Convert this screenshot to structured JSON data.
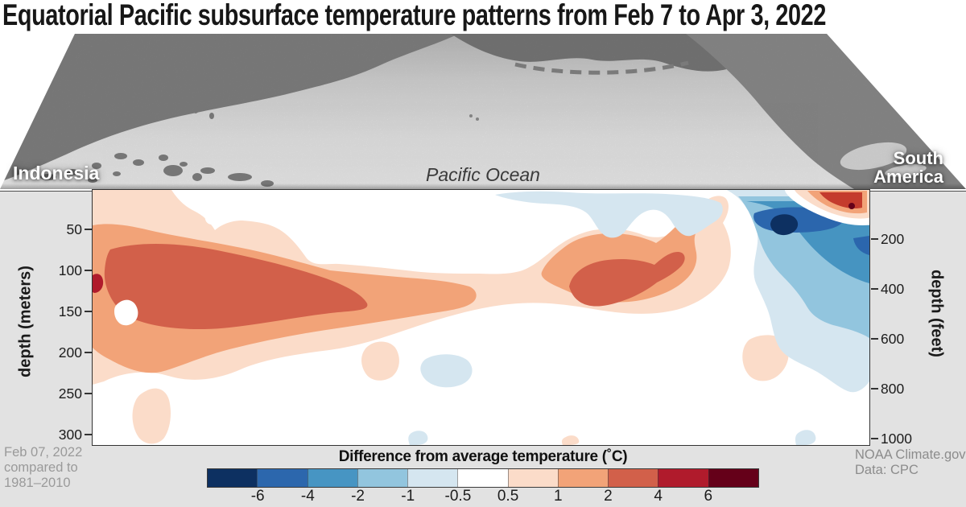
{
  "title": "Equatorial Pacific subsurface temperature patterns from Feb 7 to Apr 3, 2022",
  "map": {
    "label_left": "Indonesia",
    "label_center": "Pacific Ocean",
    "label_right_line1": "South",
    "label_right_line2": "America"
  },
  "axes": {
    "left": {
      "title": "depth (meters)",
      "ticks": [
        "50",
        "100",
        "150",
        "200",
        "250",
        "300"
      ]
    },
    "right": {
      "title": "depth (feet)",
      "ticks": [
        "200",
        "400",
        "600",
        "800",
        "1000"
      ]
    }
  },
  "footer": {
    "left_lines": [
      "Feb 07, 2022",
      "compared to",
      "1981–2010"
    ],
    "right_lines": [
      "NOAA Climate.gov",
      "Data: CPC"
    ]
  },
  "colorbar": {
    "title": "Difference from average temperature (˚C)",
    "tick_labels": [
      "-6",
      "-4",
      "-2",
      "-1",
      "-0.5",
      "0.5",
      "1",
      "2",
      "4",
      "6"
    ],
    "segment_colors": [
      "#0d3061",
      "#2c67ad",
      "#4795c3",
      "#92c5de",
      "#d5e6f0",
      "#ffffff",
      "#fbdcc9",
      "#f2a378",
      "#d2604a",
      "#b01b2c",
      "#650019"
    ]
  },
  "chart_data": {
    "type": "heatmap",
    "title": "Equatorial Pacific subsurface temperature anomaly cross-section, Feb 07, 2022 vs 1981-2010 average",
    "x_extent": "Indonesia (west) to South America (east) along the equatorial Pacific",
    "y_axis_left": {
      "label": "depth (meters)",
      "ticks": [
        50,
        100,
        150,
        200,
        250,
        300
      ]
    },
    "y_axis_right": {
      "label": "depth (feet)",
      "ticks": [
        200,
        400,
        600,
        800,
        1000
      ]
    },
    "colorbar": {
      "label": "Difference from average temperature (˚C)",
      "boundaries": [
        -6,
        -4,
        -2,
        -1,
        -0.5,
        0.5,
        1,
        2,
        4,
        6
      ]
    },
    "features": [
      {
        "region": "western Pacific subsurface slab, ~50-200 m depth",
        "anomaly_c": "+2 to +4",
        "sign": "warm"
      },
      {
        "region": "central-eastern Pacific blob, ~80-150 m depth",
        "anomaly_c": "+2 to +4",
        "sign": "warm"
      },
      {
        "region": "eastern Pacific upper ocean, 0-~120 m near South America",
        "anomaly_c": "-4 to -6",
        "sign": "cool"
      },
      {
        "region": "thin surface warm pool at far-eastern edge",
        "anomaly_c": "over +6 at core",
        "sign": "warm"
      },
      {
        "region": "scattered weak cool patches near surface mid-basin and at depth",
        "anomaly_c": "-0.5 to -1",
        "sign": "cool"
      }
    ],
    "contour_bands": [
      {
        "range": "0.5 to 1",
        "color": "#fbdcc9",
        "paths": [
          "M 0 0 L 98 0 C 106 12 114 20 126 26 C 138 32 146 40 152 50 C 160 43 172 38 186 38 C 198 39 206 40 214 42 C 236 47 250 62 266 85 C 276 96 290 91 306 92 C 336 94 364 97 398 101 C 424 104 454 104 480 104 C 506 105 522 104 534 100 C 547 95 558 86 570 76 C 584 64 602 54 622 50 C 642 47 664 48 684 56 C 696 60 708 60 720 54 C 734 46 746 32 756 19 C 764 9 778 4 786 10 C 793 17 790 30 783 41 C 792 57 796 77 790 97 C 782 119 762 137 732 147 C 700 157 662 155 622 148 C 587 142 554 138 517 142 C 480 146 444 156 404 169 C 366 182 332 194 294 199 C 254 204 214 210 184 223 C 154 236 124 240 94 231 C 64 222 34 228 14 238 L 0 242 Z",
          "M 66 250 C 78 243 91 247 95 261 C 99 277 97 296 89 308 C 81 318 65 318 57 307 C 49 295 47 277 53 263 C 56 256 60 253 66 250 Z",
          "M 340 196 C 350 186 368 186 376 196 C 384 208 382 224 372 232 C 360 240 344 238 338 226 C 332 215 333 204 340 196 Z",
          "M 816 186 C 832 177 855 179 862 191 C 868 203 864 221 851 231 C 838 241 820 239 813 227 C 805 215 805 195 816 186 Z",
          "M 586 308 C 594 303 602 305 604 311 C 606 316 598 317 590 317 L 584 317 C 582 312 583 310 586 308 Z"
        ]
      },
      {
        "range": "1 to 2",
        "color": "#f2a378",
        "paths": [
          "M 0 44 C 20 40 45 44 70 50 C 105 58 145 64 185 72 C 225 80 258 90 295 100 C 325 103 355 106 390 109 C 420 111 448 114 468 120 C 477 124 479 132 474 138 C 465 148 440 150 410 155 C 370 162 330 168 290 174 C 250 180 210 188 170 198 C 135 207 108 220 85 226 C 62 231 38 220 20 210 C 10 205 4 200 0 196 Z",
          "M 558 102 C 562 92 572 82 585 72 C 600 60 620 54 645 54 C 668 54 688 60 700 66 C 712 58 725 46 735 34 C 742 26 750 20 756 25 C 760 30 756 42 750 52 C 746 60 748 68 750 78 C 752 92 746 104 734 114 C 720 126 700 134 675 138 C 648 142 618 138 595 128 C 578 120 554 112 558 102 Z"
        ]
      },
      {
        "range": "2 to 4",
        "color": "#d2604a",
        "paths": [
          "M 22 74 C 55 64 105 65 155 75 C 205 85 250 96 290 110 C 315 119 335 130 341 141 C 344 149 330 150 305 152 C 265 156 215 166 170 171 C 126 176 74 172 46 158 C 27 148 13 122 15 100 C 16 88 18 80 22 74 Z",
          "M 592 120 C 596 102 614 90 640 87 C 664 84 686 88 698 93 C 707 85 717 77 727 77 C 736 77 739 86 731 95 C 723 103 713 109 701 115 C 686 127 664 138 640 143 C 616 148 598 141 592 120 Z"
        ]
      },
      {
        "range": "4 to 6",
        "color": "#b01b2c",
        "paths": [
          "M 0 106 C 6 102 12 105 13 113 C 14 121 9 128 2 128 L 0 127 Z"
        ]
      },
      {
        "range": "interior zero holes",
        "color": "#ffffff",
        "paths": [
          "M 33 140 C 41 134 51 136 55 146 C 59 156 54 166 44 168 C 34 170 27 161 27 151 C 27 145 29 143 33 140 Z",
          "M 141 29 C 147 24 157 25 159 32 C 161 39 155 44 147 43 C 140 42 138 34 141 29 Z"
        ]
      },
      {
        "range": "-1 to -0.5",
        "color": "#d5e6f0",
        "paths": [
          "M 500 6 C 530 1 562 1 592 3 C 632 6 672 3 712 5 C 742 7 766 9 780 16 C 786 24 782 34 772 40 C 762 46 753 54 743 57 C 733 59 725 49 719 39 C 711 27 701 22 689 26 C 677 30 669 42 661 52 C 653 61 641 62 633 54 C 625 46 621 34 613 28 C 601 19 581 18 561 17 C 541 16 515 12 500 6 Z",
          "M 414 210 C 428 202 454 202 466 212 C 476 222 472 236 458 242 C 442 248 422 246 412 234 C 405 225 406 216 414 210 Z",
          "M 396 302 C 404 297 414 299 416 306 C 418 313 412 317 402 317 L 394 317 C 391 309 392 305 396 302 Z",
          "M 878 301 C 886 296 896 298 898 306 C 900 313 894 317 884 317 L 874 317 C 872 308 873 304 878 301 Z",
          "M 788 0 L 965 0 L 965 238 C 958 248 948 254 938 250 C 926 245 914 234 900 226 C 884 217 868 212 858 202 C 848 192 846 176 842 160 C 838 144 830 130 824 116 C 818 100 824 84 826 66 C 828 46 818 28 806 14 C 800 7 793 3 788 0 Z"
        ]
      },
      {
        "range": "-2 to -1",
        "color": "#92c5de",
        "paths": [
          "M 802 8 L 965 8 L 965 184 C 952 176 936 172 920 168 C 904 163 894 156 888 146 C 880 132 870 120 858 108 C 846 96 836 82 830 66 C 824 50 820 34 812 22 C 808 15 805 11 802 8 Z"
        ]
      },
      {
        "range": "-4 to -2",
        "color": "#4694c1",
        "paths": [
          "M 812 14 L 965 14 L 965 116 C 950 112 934 104 920 94 C 906 84 894 72 884 60 C 876 50 868 40 858 30 C 848 22 828 16 812 14 Z"
        ]
      },
      {
        "range": "-6 to -4",
        "color": "#2b66ad",
        "paths": [
          "M 822 29 C 842 21 882 19 912 25 C 932 29 938 37 927 44 C 912 53 872 55 846 51 C 828 48 818 39 822 29 Z",
          "M 945 60 L 965 57 L 965 81 C 954 78 947 71 945 60 Z"
        ]
      },
      {
        "range": "below -6",
        "color": "#0d3061",
        "paths": [
          "M 848 33 C 858 28 871 30 875 38 C 879 46 872 55 860 56 C 850 57 842 50 842 42 C 843 37 845 35 848 33 Z"
        ]
      },
      {
        "range": "surface warm pool white ring",
        "color": "#ffffff",
        "paths": [
          "M 860 0 L 975 0 L 975 42 C 958 46 938 44 918 37 C 898 30 876 19 866 9 C 862 5 860 2 860 0 Z"
        ]
      },
      {
        "range": "surface 0.5 to 1",
        "color": "#fbdcc9",
        "paths": [
          "M 872 0 L 968 0 L 968 34 C 951 38 931 34 913 27 C 898 21 882 11 874 3 L 872 0 Z"
        ]
      },
      {
        "range": "surface 1 to 2",
        "color": "#f2a378",
        "paths": [
          "M 888 1 L 962 1 L 962 28 C 948 31 930 28 915 21 C 904 16 894 8 888 1 Z"
        ]
      },
      {
        "range": "surface 2 to 6",
        "color": "#c43b2d",
        "paths": [
          "M 903 3 L 956 3 L 956 22 C 944 25 929 21 919 16 C 911 12 906 7 903 3 Z"
        ]
      },
      {
        "range": "surface above 6",
        "color": "#650019",
        "paths": [
          "M 939 20 A 4 4 0 1 0 947 20 A 4 4 0 1 0 939 20 Z"
        ]
      }
    ]
  }
}
